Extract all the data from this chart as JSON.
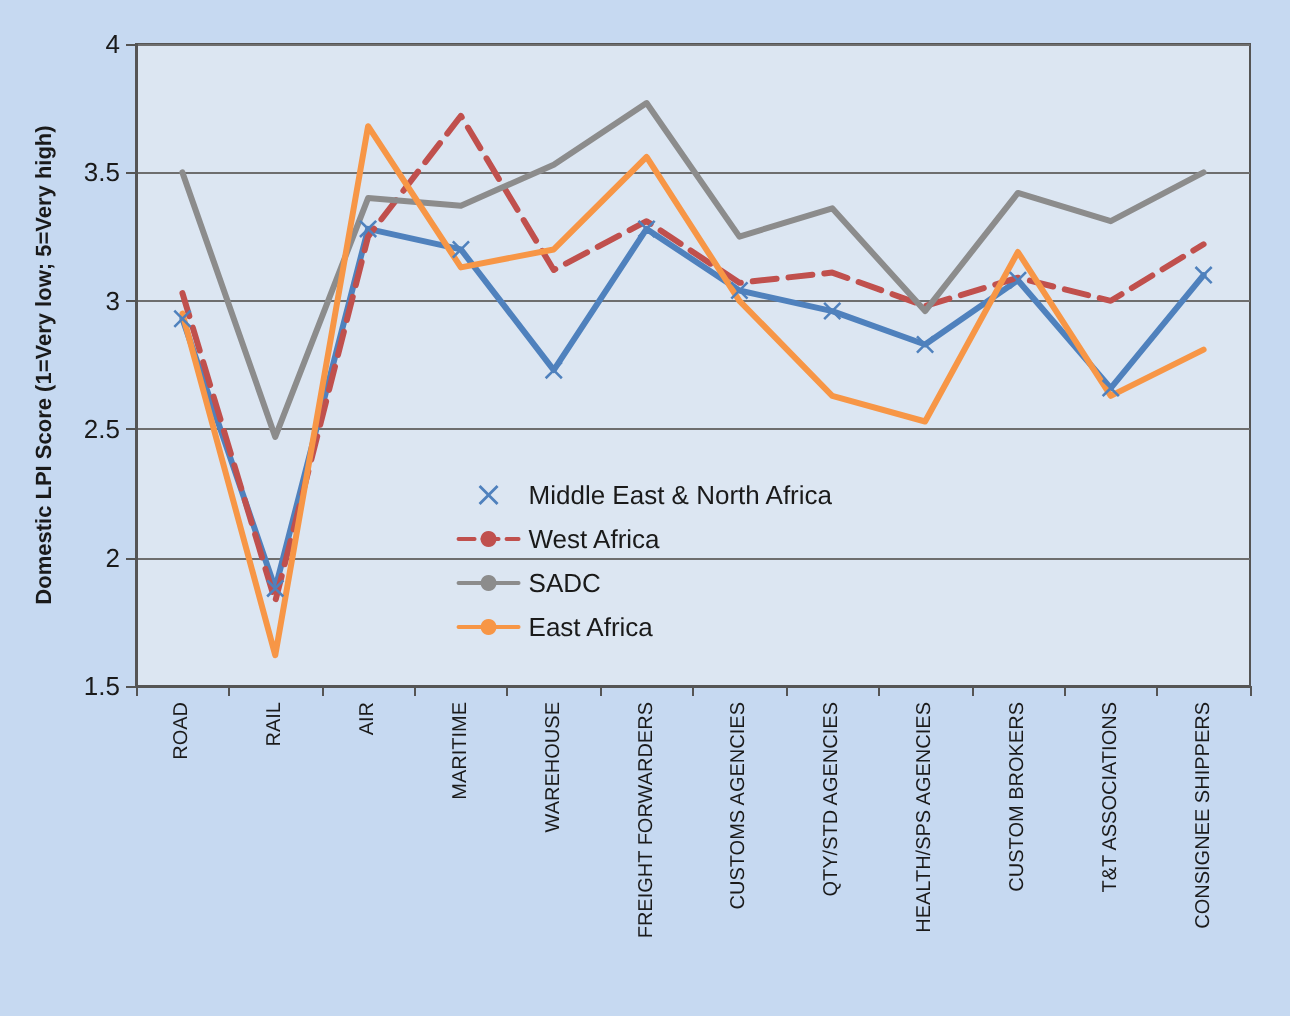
{
  "chart_data": {
    "type": "line",
    "ylabel": "Domestic LPI Score (1=Very low; 5=Very high)",
    "categories": [
      "ROAD",
      "RAIL",
      "AIR",
      "MARITIME",
      "WAREHOUSE",
      "FREIGHT FORWARDERS",
      "CUSTOMS AGENCIES",
      "QTY/STD AGENCIES",
      "HEALTH/SPS AGENCIES",
      "CUSTOM BROKERS",
      "T&T ASSOCIATIONS",
      "CONSIGNEE SHIPPERS"
    ],
    "series": [
      {
        "name": "Middle East & North Africa",
        "color": "#4f81bd",
        "marker": "cross",
        "values": [
          2.93,
          1.88,
          3.28,
          3.2,
          2.73,
          3.28,
          3.04,
          2.96,
          2.83,
          3.08,
          2.66,
          3.1
        ]
      },
      {
        "name": "West Africa",
        "color": "#c0504d",
        "line_style": "dashed",
        "values": [
          3.03,
          1.83,
          3.25,
          3.72,
          3.12,
          3.31,
          3.07,
          3.11,
          2.98,
          3.09,
          3.0,
          3.22
        ]
      },
      {
        "name": "SADC",
        "color": "#8c8c8c",
        "values": [
          3.5,
          2.47,
          3.4,
          3.37,
          3.53,
          3.77,
          3.25,
          3.36,
          2.96,
          3.42,
          3.31,
          3.5
        ]
      },
      {
        "name": "East Africa",
        "color": "#f79646",
        "values": [
          2.95,
          1.62,
          3.68,
          3.13,
          3.2,
          3.56,
          3.0,
          2.63,
          2.53,
          3.19,
          2.63,
          2.81
        ]
      }
    ],
    "ylim": [
      1.5,
      4
    ],
    "yticks": [
      1.5,
      2,
      2.5,
      3,
      3.5,
      4
    ],
    "grid": "y",
    "legend": "bottom"
  }
}
